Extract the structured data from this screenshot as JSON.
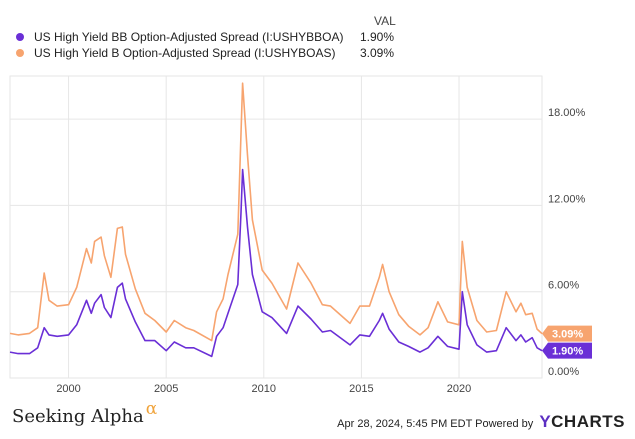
{
  "legend": {
    "header": "VAL",
    "items": [
      {
        "label": "US High Yield BB Option-Adjusted Spread (I:USHYBBOA)",
        "value": "1.90%",
        "color": "#6a2fd6"
      },
      {
        "label": "US High Yield B Option-Adjusted Spread (I:USHYBOAS)",
        "value": "3.09%",
        "color": "#f7a46f"
      }
    ]
  },
  "footer": {
    "brand": "Seeking Alpha",
    "brand_mark": "α",
    "timestamp": "Apr 28, 2024, 5:45 PM EDT",
    "powered_by": "Powered by",
    "logo_y": "Y",
    "logo_rest": "CHARTS"
  },
  "chart_data": {
    "type": "line",
    "x_ticks": [
      "2000",
      "2005",
      "2010",
      "2015",
      "2020"
    ],
    "y_ticks": [
      "0.00%",
      "6.00%",
      "12.00%",
      "18.00%"
    ],
    "ylim": [
      0,
      21
    ],
    "xlim": [
      "1997-01",
      "2024-04"
    ],
    "grid": true,
    "end_labels": [
      "3.09%",
      "1.90%"
    ],
    "series": [
      {
        "name": "US High Yield B Option-Adjusted Spread (I:USHYBOAS)",
        "color": "#f7a46f",
        "points": [
          [
            "1997-01",
            3.1
          ],
          [
            "1997-06",
            3.0
          ],
          [
            "1998-01",
            3.1
          ],
          [
            "1998-06",
            3.5
          ],
          [
            "1998-10",
            7.3
          ],
          [
            "1999-01",
            5.4
          ],
          [
            "1999-06",
            5.0
          ],
          [
            "2000-01",
            5.1
          ],
          [
            "2000-06",
            6.3
          ],
          [
            "2000-12",
            9.0
          ],
          [
            "2001-03",
            8.0
          ],
          [
            "2001-05",
            9.5
          ],
          [
            "2001-09",
            9.8
          ],
          [
            "2001-11",
            8.5
          ],
          [
            "2002-03",
            7.0
          ],
          [
            "2002-07",
            10.4
          ],
          [
            "2002-10",
            10.5
          ],
          [
            "2002-12",
            8.6
          ],
          [
            "2003-06",
            6.2
          ],
          [
            "2003-12",
            4.5
          ],
          [
            "2004-06",
            4.0
          ],
          [
            "2005-01",
            3.2
          ],
          [
            "2005-06",
            4.0
          ],
          [
            "2006-01",
            3.5
          ],
          [
            "2006-06",
            3.3
          ],
          [
            "2007-05",
            2.6
          ],
          [
            "2007-08",
            4.6
          ],
          [
            "2007-12",
            5.5
          ],
          [
            "2008-03",
            7.2
          ],
          [
            "2008-09",
            10.0
          ],
          [
            "2008-11",
            17.0
          ],
          [
            "2008-12",
            20.5
          ],
          [
            "2009-03",
            15.5
          ],
          [
            "2009-06",
            11.0
          ],
          [
            "2009-12",
            7.5
          ],
          [
            "2010-06",
            6.6
          ],
          [
            "2011-03",
            4.8
          ],
          [
            "2011-10",
            8.0
          ],
          [
            "2012-06",
            6.6
          ],
          [
            "2013-01",
            5.1
          ],
          [
            "2013-06",
            5.0
          ],
          [
            "2014-06",
            3.8
          ],
          [
            "2014-12",
            5.0
          ],
          [
            "2015-06",
            5.0
          ],
          [
            "2015-12",
            7.0
          ],
          [
            "2016-02",
            7.9
          ],
          [
            "2016-06",
            6.0
          ],
          [
            "2016-12",
            4.4
          ],
          [
            "2017-06",
            3.6
          ],
          [
            "2018-01",
            3.0
          ],
          [
            "2018-06",
            3.5
          ],
          [
            "2018-12",
            5.3
          ],
          [
            "2019-06",
            3.9
          ],
          [
            "2020-01",
            3.7
          ],
          [
            "2020-03",
            9.5
          ],
          [
            "2020-06",
            6.3
          ],
          [
            "2020-12",
            4.0
          ],
          [
            "2021-06",
            3.2
          ],
          [
            "2021-12",
            3.3
          ],
          [
            "2022-06",
            6.0
          ],
          [
            "2022-12",
            4.6
          ],
          [
            "2023-03",
            5.2
          ],
          [
            "2023-06",
            4.4
          ],
          [
            "2023-10",
            4.5
          ],
          [
            "2024-01",
            3.4
          ],
          [
            "2024-04",
            3.09
          ]
        ]
      },
      {
        "name": "US High Yield BB Option-Adjusted Spread (I:USHYBBOA)",
        "color": "#6a2fd6",
        "points": [
          [
            "1997-01",
            1.8
          ],
          [
            "1997-06",
            1.7
          ],
          [
            "1998-01",
            1.7
          ],
          [
            "1998-06",
            2.1
          ],
          [
            "1998-10",
            3.5
          ],
          [
            "1999-01",
            3.0
          ],
          [
            "1999-06",
            2.9
          ],
          [
            "2000-01",
            3.0
          ],
          [
            "2000-06",
            3.7
          ],
          [
            "2000-12",
            5.4
          ],
          [
            "2001-03",
            4.5
          ],
          [
            "2001-05",
            5.2
          ],
          [
            "2001-09",
            5.8
          ],
          [
            "2001-11",
            4.9
          ],
          [
            "2002-03",
            4.2
          ],
          [
            "2002-07",
            6.3
          ],
          [
            "2002-10",
            6.6
          ],
          [
            "2002-12",
            5.5
          ],
          [
            "2003-06",
            3.9
          ],
          [
            "2003-12",
            2.6
          ],
          [
            "2004-06",
            2.6
          ],
          [
            "2005-01",
            1.9
          ],
          [
            "2005-06",
            2.5
          ],
          [
            "2006-01",
            2.1
          ],
          [
            "2006-06",
            2.1
          ],
          [
            "2007-05",
            1.5
          ],
          [
            "2007-08",
            2.9
          ],
          [
            "2007-12",
            3.5
          ],
          [
            "2008-03",
            4.5
          ],
          [
            "2008-09",
            6.5
          ],
          [
            "2008-11",
            11.5
          ],
          [
            "2008-12",
            14.5
          ],
          [
            "2009-03",
            10.5
          ],
          [
            "2009-06",
            7.2
          ],
          [
            "2009-12",
            4.6
          ],
          [
            "2010-06",
            4.2
          ],
          [
            "2011-03",
            3.1
          ],
          [
            "2011-10",
            5.0
          ],
          [
            "2012-06",
            4.1
          ],
          [
            "2013-01",
            3.2
          ],
          [
            "2013-06",
            3.3
          ],
          [
            "2014-06",
            2.3
          ],
          [
            "2014-12",
            3.0
          ],
          [
            "2015-06",
            2.9
          ],
          [
            "2015-12",
            4.0
          ],
          [
            "2016-02",
            4.5
          ],
          [
            "2016-06",
            3.4
          ],
          [
            "2016-12",
            2.5
          ],
          [
            "2017-06",
            2.2
          ],
          [
            "2018-01",
            1.8
          ],
          [
            "2018-06",
            2.1
          ],
          [
            "2018-12",
            2.9
          ],
          [
            "2019-06",
            2.2
          ],
          [
            "2020-01",
            2.0
          ],
          [
            "2020-03",
            6.0
          ],
          [
            "2020-06",
            3.7
          ],
          [
            "2020-12",
            2.3
          ],
          [
            "2021-06",
            1.8
          ],
          [
            "2021-12",
            1.9
          ],
          [
            "2022-06",
            3.5
          ],
          [
            "2022-12",
            2.6
          ],
          [
            "2023-03",
            3.0
          ],
          [
            "2023-06",
            2.5
          ],
          [
            "2023-10",
            2.8
          ],
          [
            "2024-01",
            2.1
          ],
          [
            "2024-04",
            1.9
          ]
        ]
      }
    ]
  }
}
